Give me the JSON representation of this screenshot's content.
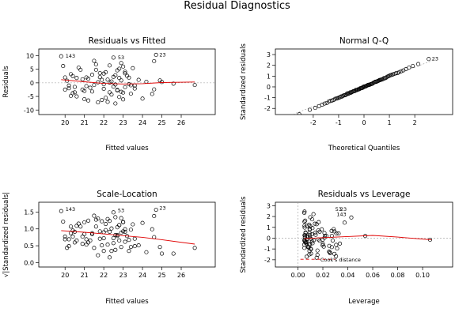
{
  "figure": {
    "title": "Residual Diagnostics"
  },
  "chart_data": [
    {
      "type": "scatter",
      "title": "Residuals vs Fitted",
      "xlabel": "Fitted values",
      "ylabel": "Residuals",
      "xlim": [
        19.55,
        26.85
      ],
      "ylim": [
        -10.8,
        11.6
      ],
      "xticks": [
        "20",
        "21",
        "22",
        "23",
        "24",
        "25",
        "26"
      ],
      "xtick_values": [
        20,
        21,
        22,
        23,
        24,
        25,
        26
      ],
      "yticks": [
        "-10",
        "-5",
        "0",
        "5",
        "10"
      ],
      "ytick_values": [
        -10,
        -5,
        0,
        5,
        10
      ],
      "reference_line": 0,
      "point_labels": [
        {
          "text": "143",
          "x": 19.9,
          "y": 9.8
        },
        {
          "text": "53",
          "x": 22.6,
          "y": 9.3
        },
        {
          "text": "23",
          "x": 24.75,
          "y": 10.3
        }
      ],
      "points": {
        "x": [
          19.8,
          19.9,
          20.0,
          20.1,
          20.2,
          20.3,
          20.3,
          20.4,
          20.5,
          20.6,
          20.7,
          20.8,
          20.9,
          21.0,
          21.0,
          21.1,
          21.2,
          21.3,
          21.4,
          21.5,
          21.5,
          21.6,
          21.7,
          21.8,
          21.9,
          22.0,
          22.0,
          22.1,
          22.2,
          22.3,
          22.3,
          22.4,
          22.5,
          22.5,
          22.6,
          22.6,
          22.7,
          22.7,
          22.8,
          22.8,
          22.9,
          22.9,
          23.0,
          23.0,
          23.1,
          23.1,
          23.2,
          23.3,
          23.4,
          23.5,
          23.6,
          23.8,
          24.0,
          24.2,
          24.5,
          24.6,
          24.7,
          24.9,
          25.0,
          25.6,
          26.7,
          20.4,
          21.2,
          22.1,
          22.9,
          23.4,
          21.7,
          22.4,
          20.9,
          23.1,
          22.0,
          21.4,
          20.6,
          22.8,
          23.6,
          21.9,
          22.5,
          20.2,
          23.0,
          22.3,
          21.1,
          24.6,
          20.0,
          22.6,
          21.6,
          23.3,
          22.2,
          21.8,
          20.5,
          22.7
        ],
        "y": [
          9.8,
          6.2,
          -2.5,
          0.8,
          -1.0,
          3.2,
          -4.8,
          -3.8,
          -3.5,
          1.8,
          5.6,
          4.8,
          -2.5,
          -3.0,
          -6.0,
          2.0,
          1.5,
          -1.8,
          -3.2,
          8.1,
          -0.8,
          4.8,
          -7.2,
          2.1,
          1.1,
          -2.2,
          3.4,
          -5.5,
          1.2,
          -3.5,
          6.4,
          0.5,
          -1.4,
          9.3,
          2.8,
          -7.6,
          4.6,
          -2.8,
          1.8,
          -5.2,
          0.9,
          -3.3,
          6.0,
          -6.1,
          3.5,
          -1.6,
          2.6,
          -0.5,
          -4.0,
          5.4,
          -2.1,
          1.1,
          -5.8,
          0.4,
          -4.1,
          -2.4,
          10.3,
          0.9,
          0.3,
          -0.3,
          -0.8,
          2.5,
          -6.5,
          3.9,
          7.3,
          -0.9,
          0.2,
          -4.3,
          1.3,
          4.1,
          -0.5,
          3.0,
          -5.0,
          5.2,
          -1.0,
          -6.3,
          2.2,
          -2.0,
          -3.6,
          0.1,
          -1.2,
          8.0,
          2.0,
          -0.6,
          6.8,
          1.9,
          -7.0,
          3.6,
          -1.5,
          -2.6
        ]
      },
      "smooth_line": {
        "x": [
          19.8,
          21.0,
          22.0,
          23.0,
          24.0,
          25.0,
          26.7
        ],
        "y": [
          1.2,
          0.4,
          -0.2,
          -0.4,
          -0.3,
          0.1,
          0.3
        ]
      }
    },
    {
      "type": "scatter",
      "title": "Normal Q-Q",
      "xlabel": "Theoretical Quantiles",
      "ylabel": "Standardized residuals",
      "xlim": [
        -2.8,
        2.8
      ],
      "ylim": [
        -2.35,
        3.3
      ],
      "xticks": [
        "-2",
        "-1",
        "0",
        "1",
        "2"
      ],
      "xtick_values": [
        -2,
        -1,
        0,
        1,
        2
      ],
      "yticks": [
        "-2",
        "-1",
        "0",
        "1",
        "2",
        "3"
      ],
      "ytick_values": [
        -2,
        -1,
        0,
        1,
        2,
        3
      ],
      "reference_line": {
        "x": [
          -2.8,
          2.8
        ],
        "y": [
          -2.55,
          2.55
        ]
      },
      "point_labels": [
        {
          "text": "23",
          "x": 2.58,
          "y": 2.62
        }
      ],
      "points": {
        "n": 90,
        "theoretical_range": [
          -2.55,
          2.55
        ]
      }
    },
    {
      "type": "scatter",
      "title": "Scale-Location",
      "xlabel": "Fitted values",
      "ylabel": "√|Standardized residuals|",
      "xlim": [
        19.55,
        26.85
      ],
      "ylim": [
        -0.06,
        1.72
      ],
      "xticks": [
        "20",
        "21",
        "22",
        "23",
        "24",
        "25",
        "26"
      ],
      "xtick_values": [
        20,
        21,
        22,
        23,
        24,
        25,
        26
      ],
      "yticks": [
        "0.0",
        "0.5",
        "1.0",
        "1.5"
      ],
      "ytick_values": [
        0,
        0.5,
        1.0,
        1.5
      ],
      "point_labels": [
        {
          "text": "143",
          "x": 19.9,
          "y": 1.58
        },
        {
          "text": "53",
          "x": 22.6,
          "y": 1.54
        },
        {
          "text": "23",
          "x": 24.75,
          "y": 1.62
        }
      ],
      "smooth_line": {
        "x": [
          19.8,
          21.0,
          22.0,
          23.0,
          24.0,
          25.0,
          26.7
        ],
        "y": [
          0.95,
          0.9,
          0.85,
          0.8,
          0.75,
          0.68,
          0.55
        ]
      }
    },
    {
      "type": "scatter",
      "title": "Residuals vs Leverage",
      "xlabel": "Leverage",
      "ylabel": "Standardized residuals",
      "xlim": [
        -0.004,
        0.11
      ],
      "ylim": [
        -2.45,
        3.1
      ],
      "xticks": [
        "0.00",
        "0.02",
        "0.04",
        "0.06",
        "0.08",
        "0.10"
      ],
      "xtick_values": [
        0,
        0.02,
        0.04,
        0.06,
        0.08,
        0.1
      ],
      "yticks": [
        "-2",
        "-1",
        "0",
        "1",
        "2",
        "3"
      ],
      "ytick_values": [
        -2,
        -1,
        0,
        1,
        2,
        3
      ],
      "reference_line": 0,
      "cooks_distance_label": "Cook's distance",
      "point_labels": [
        {
          "text": "53",
          "x": 0.028,
          "y": 2.68
        },
        {
          "text": "23",
          "x": 0.032,
          "y": 2.68
        },
        {
          "text": "143",
          "x": 0.029,
          "y": 2.2
        }
      ],
      "smooth_line": {
        "x": [
          0.005,
          0.02,
          0.04,
          0.06,
          0.08,
          0.107
        ],
        "y": [
          -0.05,
          0.05,
          0.15,
          0.25,
          0.1,
          -0.15
        ]
      },
      "cooks_line": {
        "x": [
          0.002,
          0.03
        ],
        "y": [
          -1.95,
          -1.95
        ]
      }
    }
  ]
}
